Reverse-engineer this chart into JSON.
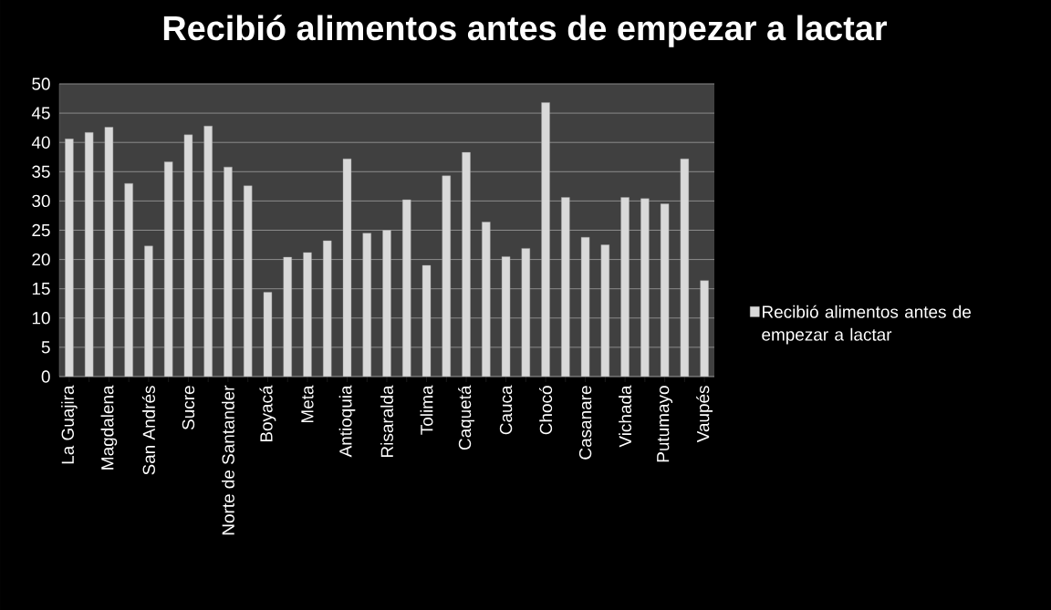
{
  "chart_data": {
    "type": "bar",
    "title": "Recibió alimentos antes de empezar a lactar",
    "categories": [
      "La Guajira",
      null,
      "Magdalena",
      null,
      "San Andrés",
      null,
      "Sucre",
      null,
      "Norte de Santander",
      null,
      "Boyacá",
      null,
      "Meta",
      null,
      "Antioquia",
      null,
      "Risaralda",
      null,
      "Tolima",
      null,
      "Caquetá",
      null,
      "Cauca",
      null,
      "Chocó",
      null,
      "Casanare",
      null,
      "Vichada",
      null,
      "Putumayo",
      null,
      "Vaupés"
    ],
    "series": [
      {
        "name": "Recibió alimentos antes de empezar a lactar",
        "color": "#d9d9d9",
        "values": [
          40.6,
          41.7,
          42.6,
          33.0,
          22.3,
          36.7,
          41.3,
          42.8,
          35.8,
          32.6,
          14.4,
          20.4,
          21.2,
          23.2,
          37.2,
          24.5,
          25.0,
          30.2,
          19.0,
          34.3,
          38.3,
          26.4,
          20.5,
          21.9,
          46.8,
          30.6,
          23.8,
          22.5,
          30.6,
          30.4,
          29.5,
          37.2,
          16.4
        ]
      }
    ],
    "ylim": [
      0,
      50
    ],
    "yticks": [
      0,
      5,
      10,
      15,
      20,
      25,
      30,
      35,
      40,
      45,
      50
    ],
    "grid": "y",
    "legend": "right"
  }
}
